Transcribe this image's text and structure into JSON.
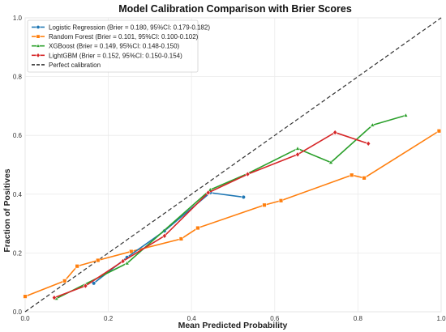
{
  "chart_data": {
    "type": "line",
    "title": "Model Calibration Comparison with Brier Scores",
    "xlabel": "Mean Predicted Probability",
    "ylabel": "Fraction of Positives",
    "xlim": [
      0,
      1
    ],
    "ylim": [
      0,
      1
    ],
    "xticks": [
      "0.0",
      "0.2",
      "0.4",
      "0.6",
      "0.8",
      "1.0"
    ],
    "yticks": [
      "0.0",
      "0.2",
      "0.4",
      "0.6",
      "0.8",
      "1.0"
    ],
    "grid": true,
    "legend_position": "top-left",
    "series": [
      {
        "name": "Logistic Regression (Brier = 0.180, 95%CI: 0.179-0.182)",
        "color": "#1f77b4",
        "marker": "circle",
        "x": [
          0.165,
          0.245,
          0.335,
          0.445,
          0.525
        ],
        "y": [
          0.097,
          0.185,
          0.275,
          0.405,
          0.39
        ]
      },
      {
        "name": "Random Forest (Brier = 0.101, 95%CI: 0.100-0.102)",
        "color": "#ff7f0e",
        "marker": "square",
        "x": [
          0.0,
          0.095,
          0.125,
          0.175,
          0.255,
          0.375,
          0.415,
          0.575,
          0.615,
          0.785,
          0.815,
          0.995
        ],
        "y": [
          0.052,
          0.105,
          0.155,
          0.175,
          0.205,
          0.248,
          0.285,
          0.363,
          0.378,
          0.465,
          0.455,
          0.615
        ]
      },
      {
        "name": "XGBoost (Brier = 0.149, 95%CI: 0.148-0.150)",
        "color": "#2ca02c",
        "marker": "triangle",
        "x": [
          0.075,
          0.245,
          0.445,
          0.535,
          0.655,
          0.735,
          0.835,
          0.915
        ],
        "y": [
          0.045,
          0.165,
          0.415,
          0.47,
          0.555,
          0.508,
          0.635,
          0.668
        ]
      },
      {
        "name": "LightGBM (Brier = 0.152, 95%CI: 0.150-0.154)",
        "color": "#d62728",
        "marker": "diamond",
        "x": [
          0.07,
          0.145,
          0.235,
          0.335,
          0.44,
          0.535,
          0.655,
          0.745,
          0.825
        ],
        "y": [
          0.048,
          0.088,
          0.172,
          0.258,
          0.405,
          0.468,
          0.535,
          0.61,
          0.572
        ]
      },
      {
        "name": "Perfect calibration",
        "color": "#333333",
        "marker": "none",
        "dashed": true,
        "x": [
          0,
          1
        ],
        "y": [
          0,
          1
        ]
      }
    ]
  }
}
